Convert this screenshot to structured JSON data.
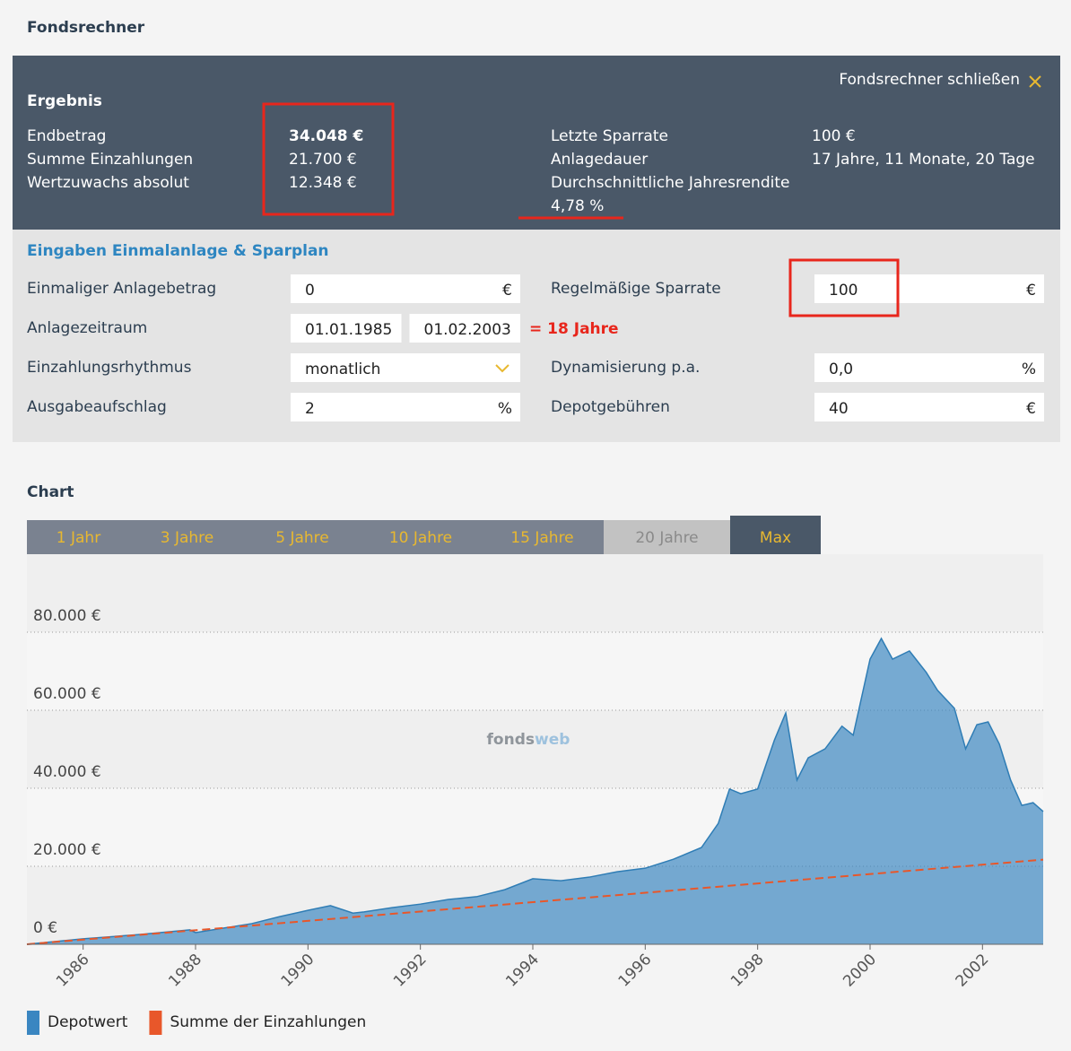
{
  "header": {
    "title": "Fondsrechner"
  },
  "result": {
    "close": "Fondsrechner schließen",
    "title": "Ergebnis",
    "left": [
      {
        "label": "Endbetrag",
        "value": "34.048 €"
      },
      {
        "label": "Summe Einzahlungen",
        "value": "21.700 €"
      },
      {
        "label": "Wertzuwachs absolut",
        "value": "12.348 €"
      }
    ],
    "right": [
      {
        "label": "Letzte Sparrate",
        "value": "100 €"
      },
      {
        "label": "Anlagedauer",
        "value": "17 Jahre, 11 Monate, 20 Tage"
      },
      {
        "label": "Durchschnittliche Jahresrendite",
        "value": "4,78 %"
      }
    ]
  },
  "inputs": {
    "title": "Eingaben Einmalanlage & Sparplan",
    "left": [
      {
        "label": "Einmaliger Anlagebetrag",
        "fields": [
          {
            "value": "0",
            "unit": "€"
          }
        ]
      },
      {
        "label": "Anlagezeitraum",
        "fields": [
          {
            "value": "01.01.1985"
          },
          {
            "value": "01.02.2003"
          }
        ]
      },
      {
        "label": "Einzahlungsrhythmus",
        "fields": [
          {
            "value": "monatlich",
            "dropdown": true
          }
        ]
      },
      {
        "label": "Ausgabeaufschlag",
        "fields": [
          {
            "value": "2",
            "unit": "%"
          }
        ]
      }
    ],
    "right": [
      {
        "label": "Regelmäßige Sparrate",
        "fields": [
          {
            "value": "100",
            "unit": "€"
          }
        ]
      },
      {
        "label": "Dynamisierung p.a.",
        "fields": [
          {
            "value": "0,0",
            "unit": "%"
          }
        ]
      },
      {
        "label": "Depotgebühren",
        "fields": [
          {
            "value": "40",
            "unit": "€"
          }
        ]
      }
    ]
  },
  "annotation": "= 18 Jahre",
  "chart_section": {
    "title": "Chart",
    "tabs": [
      "1 Jahr",
      "3 Jahre",
      "5 Jahre",
      "10 Jahre",
      "15 Jahre",
      "20 Jahre",
      "Max"
    ],
    "active_tab": 6,
    "disabled_tabs": [
      5
    ],
    "watermark": [
      "fonds",
      "web"
    ]
  },
  "chart_data": {
    "type": "area",
    "xlim": [
      1985,
      2003.08
    ],
    "xticks": [
      1986,
      1988,
      1990,
      1992,
      1994,
      1996,
      1998,
      2000,
      2002
    ],
    "ylim": [
      0,
      100000
    ],
    "yticks": [
      {
        "value": 0,
        "label": "0 €"
      },
      {
        "value": 20000,
        "label": "20.000 €"
      },
      {
        "value": 40000,
        "label": "40.000 €"
      },
      {
        "value": 60000,
        "label": "60.000 €"
      },
      {
        "value": 80000,
        "label": "80.000 €"
      }
    ],
    "grid": true,
    "legend": "bottom-left",
    "series": [
      {
        "name": "Depotwert",
        "color": "#3a86c1",
        "kind": "area",
        "x": [
          1985,
          1986,
          1987,
          1987.9,
          1988,
          1989,
          1989.5,
          1990,
          1990.4,
          1990.8,
          1991,
          1991.5,
          1992,
          1992.5,
          1993,
          1993.5,
          1994,
          1994.5,
          1995,
          1995.5,
          1996,
          1996.5,
          1997,
          1997.3,
          1997.5,
          1997.7,
          1998,
          1998.3,
          1998.5,
          1998.7,
          1998.9,
          1999.2,
          1999.5,
          1999.7,
          2000,
          2000.2,
          2000.4,
          2000.7,
          2001,
          2001.2,
          2001.5,
          2001.7,
          2001.9,
          2002.1,
          2002.3,
          2002.5,
          2002.7,
          2002.9,
          2003.08
        ],
        "values": [
          0,
          1400,
          2500,
          3700,
          3000,
          5300,
          7100,
          8700,
          9900,
          8000,
          8300,
          9400,
          10300,
          11500,
          12200,
          14000,
          16800,
          16300,
          17200,
          18600,
          19500,
          21800,
          24800,
          31000,
          39800,
          38600,
          39800,
          52400,
          59300,
          42100,
          47800,
          50100,
          55900,
          53600,
          73100,
          78400,
          73100,
          75200,
          69700,
          65100,
          60500,
          50100,
          56300,
          57000,
          51300,
          42100,
          35600,
          36300,
          34048
        ]
      },
      {
        "name": "Summe der Einzahlungen",
        "color": "#e8572a",
        "kind": "dashed-line",
        "x": [
          1985,
          2003.08
        ],
        "values": [
          0,
          21700
        ]
      }
    ]
  }
}
